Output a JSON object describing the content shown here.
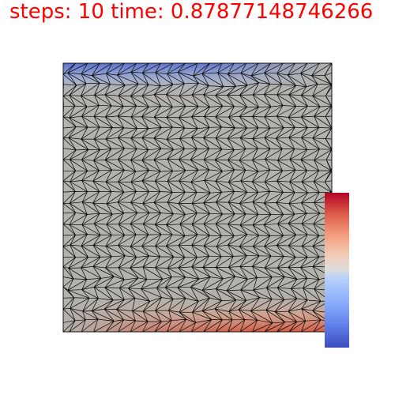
{
  "header": {
    "text": "steps: 10 time: 0.87877148746266",
    "color": "#ff0000"
  },
  "colors": {
    "background": "#ffffff",
    "mesh_fill": "#b3b2ad",
    "mesh_edges": "#000000",
    "hot": "#b40426",
    "neutral": "#dddddd",
    "cold": "#3b4cc0"
  },
  "colormap": {
    "name": "coolwarm"
  }
}
